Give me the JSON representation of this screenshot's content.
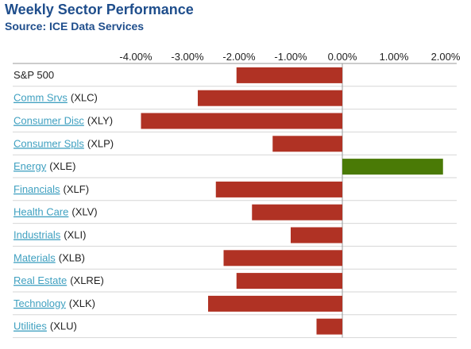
{
  "header": {
    "title": "Weekly Sector Performance",
    "source": "Source: ICE Data Services"
  },
  "colors": {
    "negative": "#b03224",
    "positive": "#4a7a06",
    "axis": "#999999",
    "grid": "#d6d6d6",
    "link": "#3fa0c0",
    "title": "#1f4e8c"
  },
  "chart_data": {
    "type": "bar",
    "orientation": "horizontal",
    "title": "Weekly Sector Performance",
    "subtitle": "Source: ICE Data Services",
    "xlim": [
      -4.0,
      2.0
    ],
    "xticks": [
      "-4.00%",
      "-3.00%",
      "-2.00%",
      "-1.00%",
      "0.00%",
      "1.00%",
      "2.00%"
    ],
    "xtick_values": [
      -4,
      -3,
      -2,
      -1,
      0,
      1,
      2
    ],
    "categories": [
      {
        "name": "S&P 500",
        "ticker": "",
        "link": false
      },
      {
        "name": "Comm Srvs",
        "ticker": "(XLC)",
        "link": true
      },
      {
        "name": "Consumer Disc",
        "ticker": "(XLY)",
        "link": true
      },
      {
        "name": "Consumer Spls",
        "ticker": "(XLP)",
        "link": true
      },
      {
        "name": "Energy",
        "ticker": "(XLE)",
        "link": true
      },
      {
        "name": "Financials",
        "ticker": "(XLF)",
        "link": true
      },
      {
        "name": "Health Care",
        "ticker": "(XLV)",
        "link": true
      },
      {
        "name": "Industrials",
        "ticker": "(XLI)",
        "link": true
      },
      {
        "name": "Materials",
        "ticker": "(XLB)",
        "link": true
      },
      {
        "name": "Real Estate",
        "ticker": "(XLRE)",
        "link": true
      },
      {
        "name": "Technology",
        "ticker": "(XLK)",
        "link": true
      },
      {
        "name": "Utilities",
        "ticker": "(XLU)",
        "link": true
      }
    ],
    "values": [
      -2.05,
      -2.8,
      -3.9,
      -1.35,
      1.95,
      -2.45,
      -1.75,
      -1.0,
      -2.3,
      -2.05,
      -2.6,
      -0.5
    ],
    "grid": true,
    "legend": "none"
  }
}
